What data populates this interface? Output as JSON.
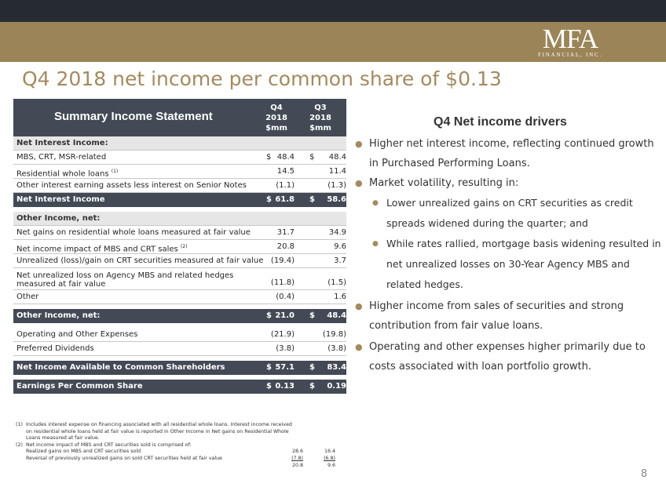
{
  "header": {
    "logo_main": "MFA",
    "logo_sub": "FINANCIAL, INC."
  },
  "title": "Q4 2018 net income per common share of $0.13",
  "table": {
    "title": "Summary Income Statement",
    "col1": [
      "Q4",
      "2018",
      "$mm"
    ],
    "col2": [
      "Q3",
      "2018",
      "$mm"
    ],
    "rows": [
      {
        "label": "Net Interest Income:",
        "d1": "",
        "v1": "",
        "d2": "",
        "v2": ""
      },
      {
        "label": "MBS, CRT, MSR-related",
        "d1": "$",
        "v1": "48.4",
        "d2": "$",
        "v2": "48.4"
      },
      {
        "label": "Residential whole loans",
        "sup": "(1)",
        "d1": "",
        "v1": "14.5",
        "d2": "",
        "v2": "11.4"
      },
      {
        "label": "Other interest earning assets less interest on Senior Notes",
        "d1": "",
        "v1": "(1.1)",
        "d2": "",
        "v2": "(1.3)"
      },
      {
        "label": "Net Interest Income",
        "d1": "$",
        "v1": "61.8",
        "d2": "$",
        "v2": "58.6"
      },
      {
        "label": "Other Income, net:",
        "d1": "",
        "v1": "",
        "d2": "",
        "v2": ""
      },
      {
        "label": "Net gains on residential whole loans measured at fair value",
        "d1": "",
        "v1": "31.7",
        "d2": "",
        "v2": "34.9"
      },
      {
        "label": "Net income impact of MBS and CRT sales",
        "sup": "(2)",
        "d1": "",
        "v1": "20.8",
        "d2": "",
        "v2": "9.6"
      },
      {
        "label": "Unrealized (loss)/gain on CRT securities measured at fair value",
        "d1": "",
        "v1": "(19.4)",
        "d2": "",
        "v2": "3.7"
      },
      {
        "label": "Net unrealized loss on Agency MBS and related hedges",
        "label2": "measured at fair value",
        "d1": "",
        "v1": "(11.8)",
        "d2": "",
        "v2": "(1.5)"
      },
      {
        "label": "Other",
        "d1": "",
        "v1": "(0.4)",
        "d2": "",
        "v2": "1.6"
      },
      {
        "label": "Other Income, net:",
        "d1": "$",
        "v1": "21.0",
        "d2": "$",
        "v2": "48.4"
      },
      {
        "label": "Operating and Other Expenses",
        "d1": "",
        "v1": "(21.9)",
        "d2": "",
        "v2": "(19.8)"
      },
      {
        "label": "Preferred Dividends",
        "d1": "",
        "v1": "(3.8)",
        "d2": "",
        "v2": "(3.8)"
      },
      {
        "label": "Net Income Available to Common Shareholders",
        "d1": "$",
        "v1": "57.1",
        "d2": "$",
        "v2": "83.4"
      },
      {
        "label": "Earnings Per Common Share",
        "d1": "$",
        "v1": "0.13",
        "d2": "$",
        "v2": "0.19"
      }
    ]
  },
  "footnotes": {
    "fn1_num": "(1)",
    "fn1_line1": "Includes interest expense on financing associated with all residential whole loans. Interest income received",
    "fn1_line2": "on residential whole loans held at fair value is reported in Other Income in Net gains on Residential Whole",
    "fn1_line3": "Loans measured at fair value.",
    "fn2_num": "(2)",
    "fn2_line1": "Net income impact of MBS and CRT securities sold is comprised of:",
    "sub1_label": "Realized gains on MBS and CRT securities sold",
    "sub1_v1": "28.6",
    "sub1_v2": "16.4",
    "sub2_label": "Reversal of previously unrealized gains on sold CRT securities held at fair value",
    "sub2_v1": "(7.8)",
    "sub2_v2": "(6.8)",
    "sub3_v1": "20.8",
    "sub3_v2": "9.6"
  },
  "drivers": {
    "title": "Q4 Net income drivers",
    "b1_l1": "Higher net interest income, reflecting continued growth",
    "b1_l2": "in Purchased Performing Loans.",
    "b2": "Market volatility, resulting in:",
    "s1_l1": "Lower unrealized gains on CRT securities as credit",
    "s1_l2": "spreads widened during the quarter; and",
    "s2_l1": "While rates rallied, mortgage basis widening resulted in",
    "s2_l2": "net unrealized losses on 30-Year Agency MBS and",
    "s2_l3": "related hedges.",
    "b3_l1": "Higher income from sales of securities and strong",
    "b3_l2": "contribution from fair value loans.",
    "b4_l1": "Operating and other expenses higher primarily due to",
    "b4_l2": "costs associated with loan portfolio growth."
  },
  "page_number": "8",
  "colors": {
    "gold": "#9b8457",
    "title_gold": "#a48a5c",
    "dark": "#262b33",
    "table_header": "#434a55",
    "section_gray": "#e6e6e6"
  },
  "icons": {
    "bullet": "bullet-dot-icon"
  }
}
